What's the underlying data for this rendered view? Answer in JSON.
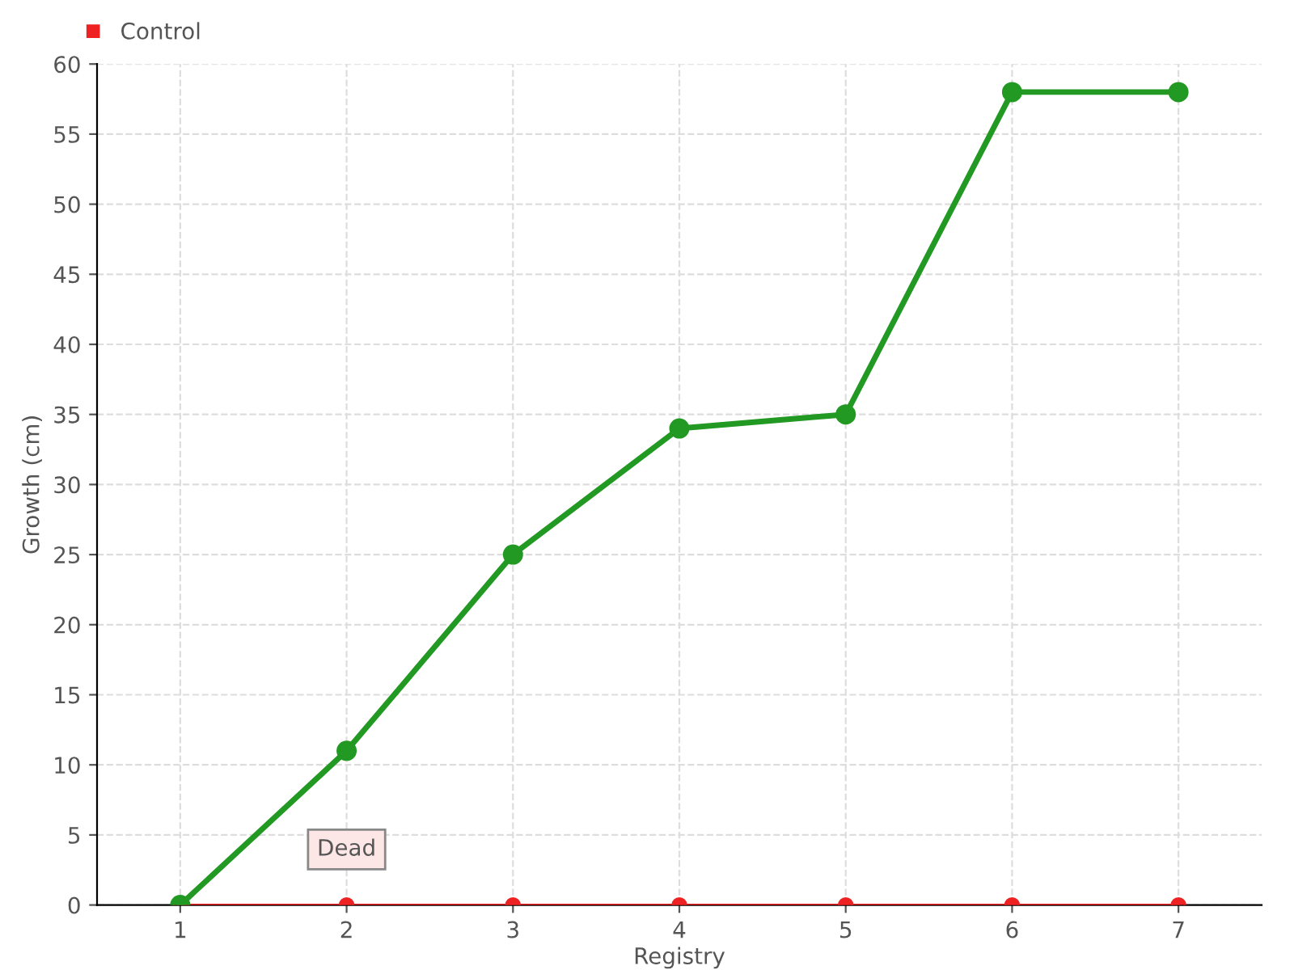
{
  "chart_data": {
    "type": "line",
    "xlabel": "Registry",
    "ylabel": "Growth (cm)",
    "categories": [
      "1",
      "2",
      "3",
      "4",
      "5",
      "6",
      "7"
    ],
    "series": [
      {
        "color": "#229922",
        "values": [
          0,
          11,
          25,
          34,
          35,
          58,
          58
        ]
      },
      {
        "name": "Control",
        "color": "#ee2222",
        "values": [
          0,
          0,
          0,
          0,
          0,
          0,
          0
        ]
      }
    ],
    "ylim": [
      0,
      60
    ],
    "yticks": [
      0,
      5,
      10,
      15,
      20,
      25,
      30,
      35,
      40,
      45,
      50,
      55,
      60
    ],
    "grid": true,
    "legend": "top left",
    "marker": "circle",
    "line_style": "solid",
    "annotations": [
      {
        "text": "Dead",
        "x": "2",
        "y": 0
      }
    ]
  }
}
